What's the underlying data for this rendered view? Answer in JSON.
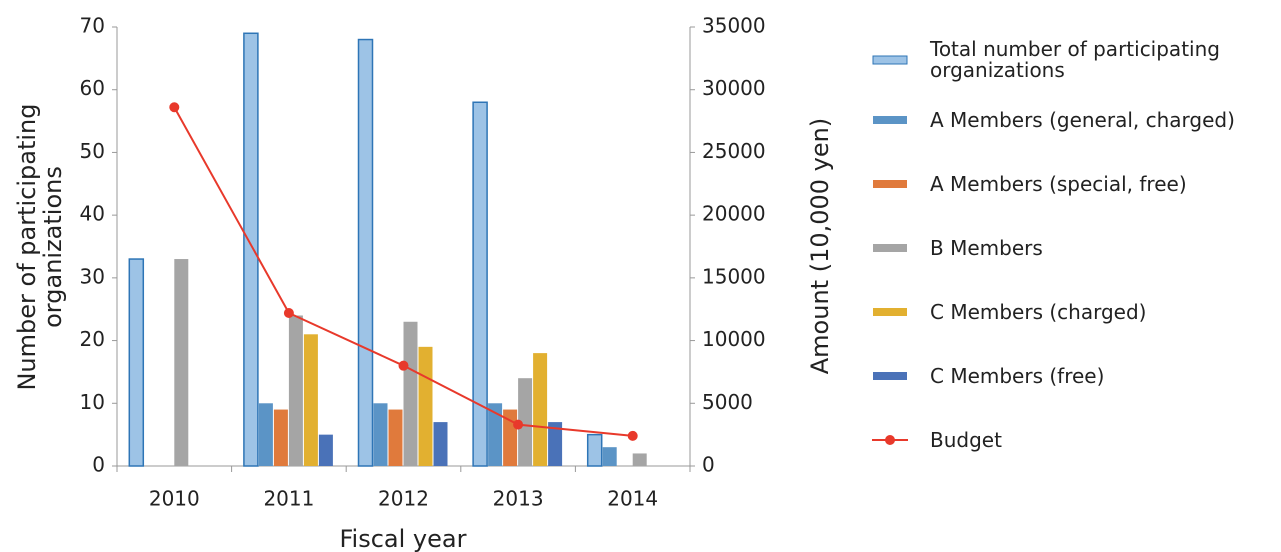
{
  "chart_data": {
    "type": "bar",
    "categories": [
      "2010",
      "2011",
      "2012",
      "2013",
      "2014"
    ],
    "xlabel": "Fiscal year",
    "ylabel": "Number of participating organizations",
    "y2label": "Amount (10,000 yen)",
    "ylim": [
      0,
      70
    ],
    "yticks": [
      0,
      10,
      20,
      30,
      40,
      50,
      60,
      70
    ],
    "y2lim": [
      0,
      35000
    ],
    "y2ticks": [
      0,
      5000,
      10000,
      15000,
      20000,
      25000,
      30000,
      35000
    ],
    "legend": "right",
    "series": [
      {
        "name": "Total number of participating organizations",
        "type": "bar",
        "color": "#9dc3e6",
        "values": [
          33,
          69,
          68,
          58,
          5
        ]
      },
      {
        "name": "A Members (general, charged)",
        "type": "bar",
        "color": "#5b94c6",
        "values": [
          null,
          10,
          10,
          10,
          3
        ]
      },
      {
        "name": "A Members (special, free)",
        "type": "bar",
        "color": "#e07a3c",
        "values": [
          null,
          9,
          9,
          9,
          null
        ]
      },
      {
        "name": "B Members",
        "type": "bar",
        "color": "#a5a5a5",
        "values": [
          33,
          24,
          23,
          14,
          2
        ]
      },
      {
        "name": "C Members (charged)",
        "type": "bar",
        "color": "#e2b030",
        "values": [
          null,
          21,
          19,
          18,
          null
        ]
      },
      {
        "name": "C Members (free)",
        "type": "bar",
        "color": "#4a72b8",
        "values": [
          null,
          5,
          7,
          7,
          null
        ]
      },
      {
        "name": "Budget",
        "type": "line",
        "axis": "y2",
        "color": "#e8392b",
        "values": [
          28600,
          12200,
          8000,
          3300,
          2400
        ]
      }
    ]
  }
}
